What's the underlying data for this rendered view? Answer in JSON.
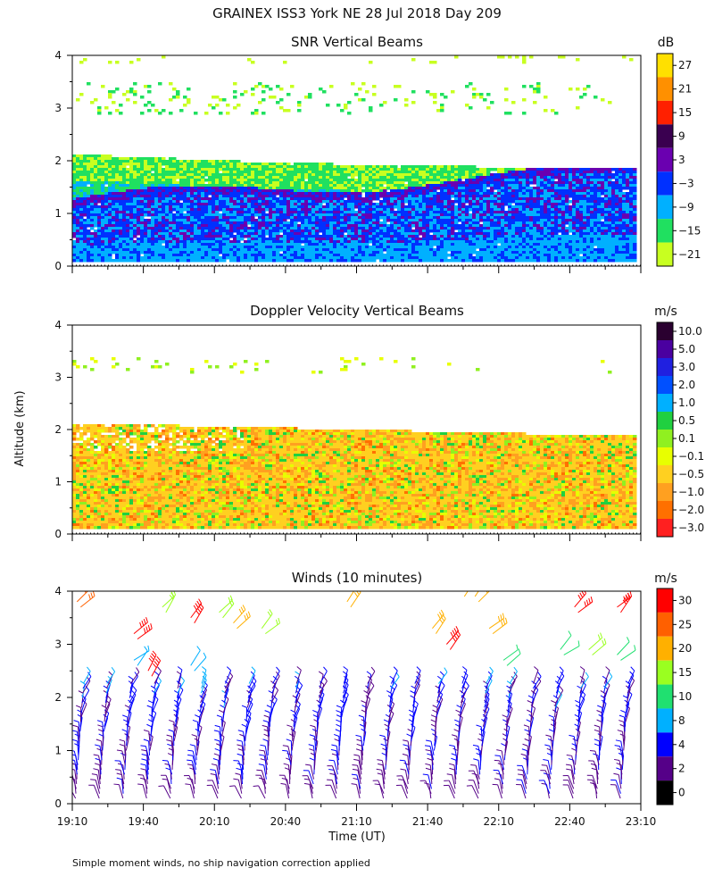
{
  "figure_title": "GRAINEX ISS3 York NE  28 Jul 2018 Day 209",
  "footer_note": "Simple moment winds, no ship navigation correction applied",
  "shared_y_label": "Altitude (km)",
  "time_ticks": [
    "19:10",
    "19:40",
    "20:10",
    "20:40",
    "21:10",
    "21:40",
    "22:10",
    "22:40",
    "23:10"
  ],
  "time_range_hours": [
    19.1667,
    23.1667
  ],
  "chart_data": [
    {
      "type": "heatmap",
      "title": "SNR Vertical Beams",
      "ylabel": "Altitude (km)",
      "ylim": [
        0,
        4
      ],
      "yticks": [
        "0",
        "1",
        "2",
        "3",
        "4"
      ],
      "unit_label": "dB",
      "colorbar_ticks": [
        "27",
        "21",
        "15",
        "9",
        "3",
        "−3",
        "−9",
        "−15",
        "−21"
      ],
      "colorbar_colors": [
        "#ffe000",
        "#ff9000",
        "#ff2000",
        "#3a0050",
        "#6a00b0",
        "#0030ff",
        "#00b0ff",
        "#20e060",
        "#c8ff20"
      ],
      "description_values": {
        "low_layer_dB": [
          -3,
          3
        ],
        "mid_layer_dB": [
          -9,
          -3
        ],
        "upper_layer_dB": [
          -21,
          -15
        ],
        "top_km": 2.1
      }
    },
    {
      "type": "heatmap",
      "title": "Doppler Velocity Vertical Beams",
      "ylabel": "Altitude (km)",
      "ylim": [
        0,
        4
      ],
      "yticks": [
        "0",
        "1",
        "2",
        "3",
        "4"
      ],
      "unit_label": "m/s",
      "colorbar_ticks": [
        "10.0",
        "5.0",
        "3.0",
        "2.0",
        "1.0",
        "0.5",
        "0.1",
        "−0.1",
        "−0.5",
        "−1.0",
        "−2.0",
        "−3.0"
      ],
      "colorbar_colors": [
        "#2a0030",
        "#4a00a0",
        "#2020e0",
        "#0050ff",
        "#00b0ff",
        "#20d040",
        "#90f020",
        "#e8ff00",
        "#ffd020",
        "#ffa020",
        "#ff7000",
        "#ff2020"
      ],
      "description_values": {
        "dominant_ms": [
          -1.0,
          -0.1
        ],
        "top_km": 2.1
      }
    },
    {
      "type": "scatter",
      "title": "Winds (10 minutes)",
      "ylabel": "Altitude (km)",
      "ylim": [
        0,
        4
      ],
      "yticks": [
        "0",
        "1",
        "2",
        "3",
        "4"
      ],
      "xlabel": "Time (UT)",
      "unit_label": "m/s",
      "colorbar_ticks": [
        "30",
        "25",
        "20",
        "15",
        "10",
        "8",
        "4",
        "2",
        "0"
      ],
      "colorbar_colors": [
        "#ff0000",
        "#ff6000",
        "#ffb000",
        "#9aff20",
        "#20e070",
        "#00b0ff",
        "#0000ff",
        "#550088",
        "#000000"
      ],
      "barb_times_hours": [
        19.25,
        19.4167,
        19.5833,
        19.75,
        19.9167,
        20.0833,
        20.25,
        20.4167,
        20.5833,
        20.75,
        20.9167,
        21.0833,
        21.25,
        21.4167,
        21.5833,
        21.75,
        21.9167,
        22.0833,
        22.25,
        22.4167,
        22.5833,
        22.75,
        22.9167,
        23.0833
      ],
      "barb_profiles": {
        "low_altitude_km": [
          0.1,
          2.3
        ],
        "low_speed_ms": [
          2,
          8
        ],
        "upper_points": [
          {
            "t": 19.2,
            "z": 3.8,
            "speed": 25
          },
          {
            "t": 19.6,
            "z": 3.2,
            "speed": 30
          },
          {
            "t": 19.8,
            "z": 3.7,
            "speed": 15
          },
          {
            "t": 20.0,
            "z": 3.5,
            "speed": 30
          },
          {
            "t": 20.2,
            "z": 3.6,
            "speed": 15
          },
          {
            "t": 20.3,
            "z": 3.4,
            "speed": 20
          },
          {
            "t": 20.5,
            "z": 3.3,
            "speed": 15
          },
          {
            "t": 21.1,
            "z": 3.8,
            "speed": 20
          },
          {
            "t": 21.7,
            "z": 3.3,
            "speed": 20
          },
          {
            "t": 21.8,
            "z": 3.0,
            "speed": 30
          },
          {
            "t": 21.9,
            "z": 4.0,
            "speed": 20
          },
          {
            "t": 22.0,
            "z": 3.9,
            "speed": 20
          },
          {
            "t": 22.1,
            "z": 3.3,
            "speed": 20
          },
          {
            "t": 22.7,
            "z": 3.7,
            "speed": 30
          },
          {
            "t": 23.0,
            "z": 3.7,
            "speed": 30
          },
          {
            "t": 22.2,
            "z": 2.7,
            "speed": 10
          },
          {
            "t": 22.6,
            "z": 2.9,
            "speed": 10
          },
          {
            "t": 22.8,
            "z": 2.9,
            "speed": 15
          },
          {
            "t": 23.0,
            "z": 2.8,
            "speed": 10
          },
          {
            "t": 19.6,
            "z": 2.7,
            "speed": 8
          },
          {
            "t": 19.7,
            "z": 2.5,
            "speed": 30
          },
          {
            "t": 20.0,
            "z": 2.6,
            "speed": 8
          }
        ]
      }
    }
  ]
}
